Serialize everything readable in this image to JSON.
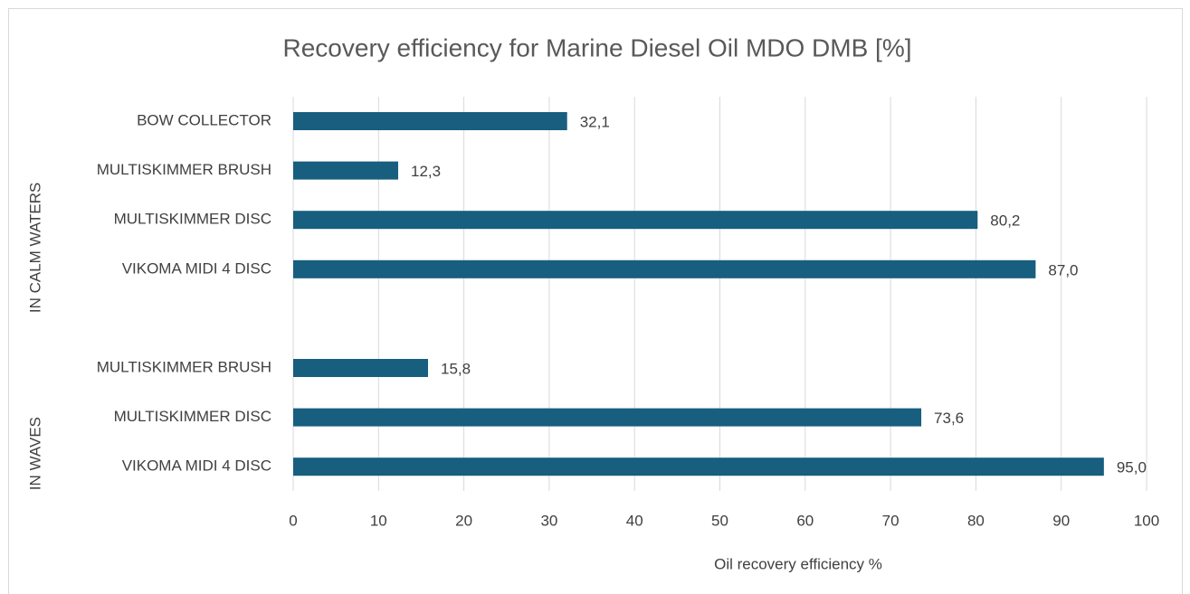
{
  "chart_data": {
    "type": "bar",
    "orientation": "horizontal",
    "title": "Recovery efficiency for Marine Diesel Oil MDO DMB [%]",
    "x_label": "Oil recovery efficiency %",
    "color": "#175e7f",
    "grid": true,
    "xlim": [
      0,
      100
    ],
    "xticks": [
      0,
      10,
      20,
      30,
      40,
      50,
      60,
      70,
      80,
      90,
      100
    ],
    "groups": [
      {
        "name": "IN CALM WATERS",
        "categories": [
          "BOW COLLECTOR",
          "MULTISKIMMER BRUSH",
          "MULTISKIMMER DISC",
          "VIKOMA MIDI 4 DISC"
        ],
        "values": [
          32.1,
          12.3,
          80.2,
          87.0
        ],
        "value_labels": [
          "32,1",
          "12,3",
          "80,2",
          "87,0"
        ]
      },
      {
        "name": "IN WAVES",
        "categories": [
          "MULTISKIMMER BRUSH",
          "MULTISKIMMER DISC",
          "VIKOMA MIDI 4 DISC"
        ],
        "values": [
          15.8,
          73.6,
          95.0
        ],
        "value_labels": [
          "15,8",
          "73,6",
          "95,0"
        ]
      }
    ]
  }
}
